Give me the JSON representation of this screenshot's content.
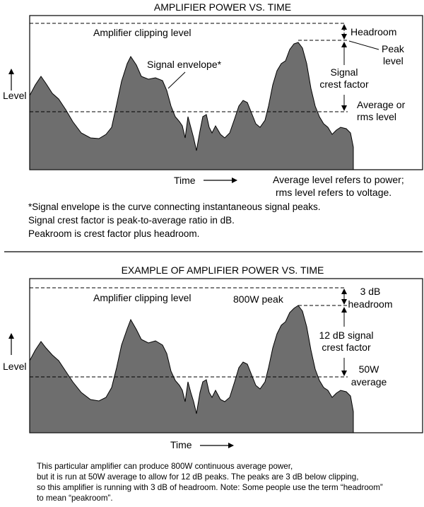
{
  "diagram1": {
    "title": "AMPLIFIER POWER VS. TIME",
    "clipping_label": "Amplifier clipping level",
    "envelope_label": "Signal envelope*",
    "headroom_label": "Headroom",
    "peak_label": [
      "Peak",
      "level"
    ],
    "crest_label": [
      "Signal",
      "crest factor"
    ],
    "average_label": [
      "Average or",
      "rms level"
    ],
    "y_axis_label": "Level",
    "x_axis_label": "Time",
    "side_note": [
      "Average level refers to power;",
      "rms level refers to voltage."
    ],
    "footnotes": [
      "*Signal envelope is the curve connecting instantaneous signal peaks.",
      "Signal crest factor is peak-to-average ratio in dB.",
      "Peakroom is crest factor plus headroom."
    ]
  },
  "diagram2": {
    "title": "EXAMPLE OF AMPLIFIER POWER VS. TIME",
    "clipping_label": "Amplifier clipping level",
    "peak_label": "800W peak",
    "headroom_label": [
      "3 dB",
      "headroom"
    ],
    "crest_label": [
      "12 dB signal",
      "crest factor"
    ],
    "average_label": [
      "50W",
      "average"
    ],
    "y_axis_label": "Level",
    "x_axis_label": "Time",
    "caption": [
      "This particular amplifier can produce 800W continuous average power,",
      "but it is run at 50W average to allow for 12 dB peaks. The peaks are 3 dB below clipping,",
      "so this amplifier is running with 3 dB of headroom. Note: Some people use the term “headroom”",
      "to mean “peakroom”."
    ]
  },
  "colors": {
    "envelope_fill": "#6e6e6e",
    "ink": "#000000"
  }
}
